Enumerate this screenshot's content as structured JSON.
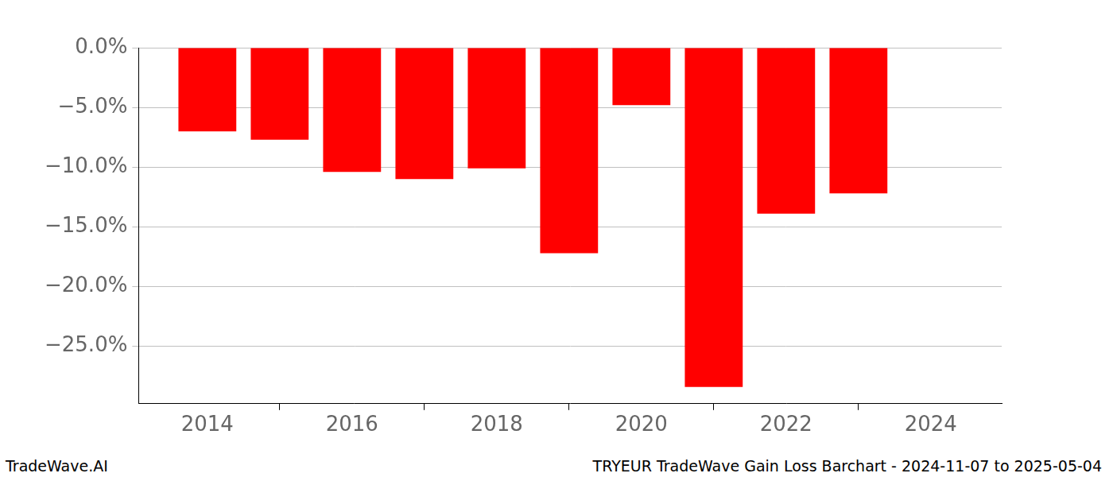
{
  "chart_data": {
    "type": "bar",
    "title": "TRYEUR TradeWave Gain Loss Barchart - 2024-11-07 to 2025-05-04",
    "annotations": [
      "TradeWave.AI"
    ],
    "x": [
      2014,
      2015,
      2016,
      2017,
      2018,
      2019,
      2020,
      2021,
      2022,
      2023
    ],
    "values": [
      -7.0,
      -7.7,
      -10.4,
      -11.0,
      -10.1,
      -17.2,
      -4.8,
      -28.4,
      -13.9,
      -12.2
    ],
    "color": "#ff0000",
    "xlim": [
      2013.05,
      2024.98
    ],
    "xticks": [
      2014,
      2016,
      2018,
      2020,
      2022,
      2024
    ],
    "ylim": [
      -29.8,
      0
    ],
    "yticks": [
      {
        "value": 0,
        "label": "0.0%"
      },
      {
        "value": -5,
        "label": "−5.0%"
      },
      {
        "value": -10,
        "label": "−10.0%"
      },
      {
        "value": -15,
        "label": "−15.0%"
      },
      {
        "value": -20,
        "label": "−20.0%"
      },
      {
        "value": -25,
        "label": "−25.0%"
      }
    ],
    "grid": true
  }
}
